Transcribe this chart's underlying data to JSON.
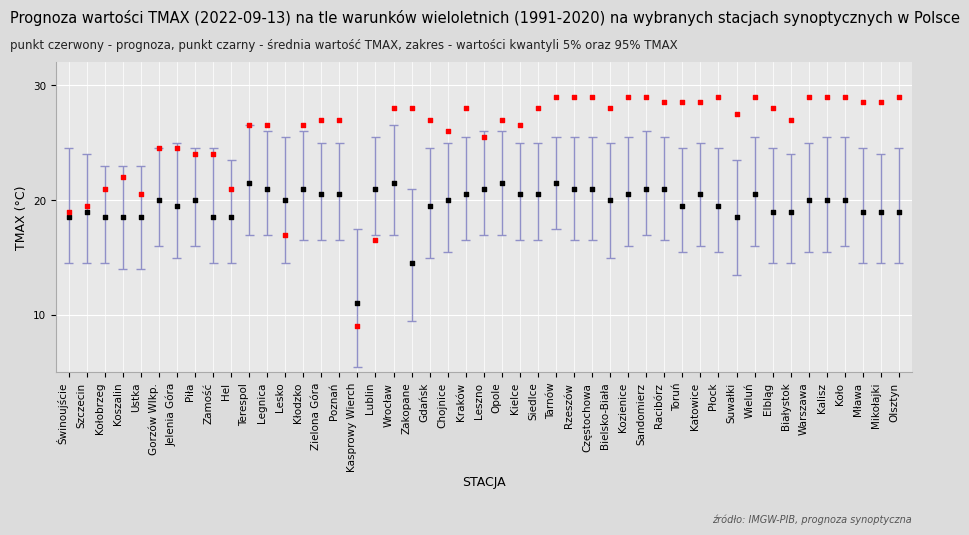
{
  "title": "Prognoza wartości TMAX (2022-09-13) na tle warunków wieloletnich (1991-2020) na wybranych stacjach synoptycznych w Polsce",
  "subtitle": "punkt czerwony - prognoza, punkt czarny - średnia wartość TMAX, zakres - wartości kwantyli 5% oraz 95% TMAX",
  "xlabel": "STACJA",
  "ylabel": "TMAX (°C)",
  "source": "źródło: IMGW-PIB, prognoza synoptyczna",
  "background_color": "#dcdcdc",
  "plot_background": "#e8e8e8",
  "stations": [
    "Świnoujście",
    "Szczecin",
    "Kołobrzeg",
    "Koszalin",
    "Ustka",
    "Gorzów Wlkp.",
    "Jelenia Góra",
    "Piła",
    "Zamość",
    "Hel",
    "Terespol",
    "Legnica",
    "Lesko",
    "Kłodzko",
    "Zielona Góra",
    "Poznań",
    "Kasprowy Wierch",
    "Lublin",
    "Wrocław",
    "Zakopane",
    "Gdańsk",
    "Chojnice",
    "Kraków",
    "Leszno",
    "Opole",
    "Kielce",
    "Siedlce",
    "Tarnów",
    "Rzeszów",
    "Częstochowa",
    "Bielsko-Biała",
    "Kozienice",
    "Sandomierz",
    "Racibórz",
    "Toruń",
    "Katowice",
    "Płock",
    "Suwałki",
    "Wieluń",
    "Elbląg",
    "Białystok",
    "Warszawa",
    "Kalisz",
    "Koło",
    "Mława",
    "Mikołajki",
    "Olsztyn"
  ],
  "forecast": [
    19.0,
    19.5,
    21.0,
    22.0,
    20.5,
    24.5,
    24.5,
    24.0,
    24.0,
    21.0,
    26.5,
    26.5,
    17.0,
    26.5,
    27.0,
    27.0,
    9.0,
    16.5,
    28.0,
    28.0,
    27.0,
    26.0,
    28.0,
    25.5,
    27.0,
    26.5,
    28.0,
    29.0,
    29.0,
    29.0,
    28.0,
    29.0,
    29.0,
    28.5,
    28.5,
    28.5,
    29.0,
    27.5,
    29.0,
    28.0,
    27.0,
    29.0,
    29.0,
    29.0,
    28.5,
    28.5,
    29.0
  ],
  "mean": [
    18.5,
    19.0,
    18.5,
    18.5,
    18.5,
    20.0,
    19.5,
    20.0,
    18.5,
    18.5,
    21.5,
    21.0,
    20.0,
    21.0,
    20.5,
    20.5,
    11.0,
    21.0,
    21.5,
    14.5,
    19.5,
    20.0,
    20.5,
    21.0,
    21.5,
    20.5,
    20.5,
    21.5,
    21.0,
    21.0,
    20.0,
    20.5,
    21.0,
    21.0,
    19.5,
    20.5,
    19.5,
    18.5,
    20.5,
    19.0,
    19.0,
    20.0,
    20.0,
    20.0,
    19.0,
    19.0,
    19.0
  ],
  "q05": [
    14.5,
    14.5,
    14.5,
    14.0,
    14.0,
    16.0,
    15.0,
    16.0,
    14.5,
    14.5,
    17.0,
    17.0,
    14.5,
    16.5,
    16.5,
    16.5,
    5.5,
    17.0,
    17.0,
    9.5,
    15.0,
    15.5,
    16.5,
    17.0,
    17.0,
    16.5,
    16.5,
    17.5,
    16.5,
    16.5,
    15.0,
    16.0,
    17.0,
    16.5,
    15.5,
    16.0,
    15.5,
    13.5,
    16.0,
    14.5,
    14.5,
    15.5,
    15.5,
    16.0,
    14.5,
    14.5,
    14.5
  ],
  "q95": [
    24.5,
    24.0,
    23.0,
    23.0,
    23.0,
    24.5,
    25.0,
    24.5,
    24.5,
    23.5,
    26.5,
    26.0,
    25.5,
    26.0,
    25.0,
    25.0,
    17.5,
    25.5,
    26.5,
    21.0,
    24.5,
    25.0,
    25.5,
    26.0,
    26.0,
    25.0,
    25.0,
    25.5,
    25.5,
    25.5,
    25.0,
    25.5,
    26.0,
    25.5,
    24.5,
    25.0,
    24.5,
    23.5,
    25.5,
    24.5,
    24.0,
    25.0,
    25.5,
    25.5,
    24.5,
    24.0,
    24.5
  ],
  "errorbar_color": "#9090c8",
  "forecast_color": "#ff0000",
  "mean_color": "#000000",
  "grid_color": "#ffffff",
  "ylim_min": 5,
  "ylim_max": 32,
  "yticks": [
    10,
    20,
    30
  ],
  "title_fontsize": 10.5,
  "subtitle_fontsize": 8.5,
  "tick_fontsize": 7.5,
  "label_fontsize": 9
}
